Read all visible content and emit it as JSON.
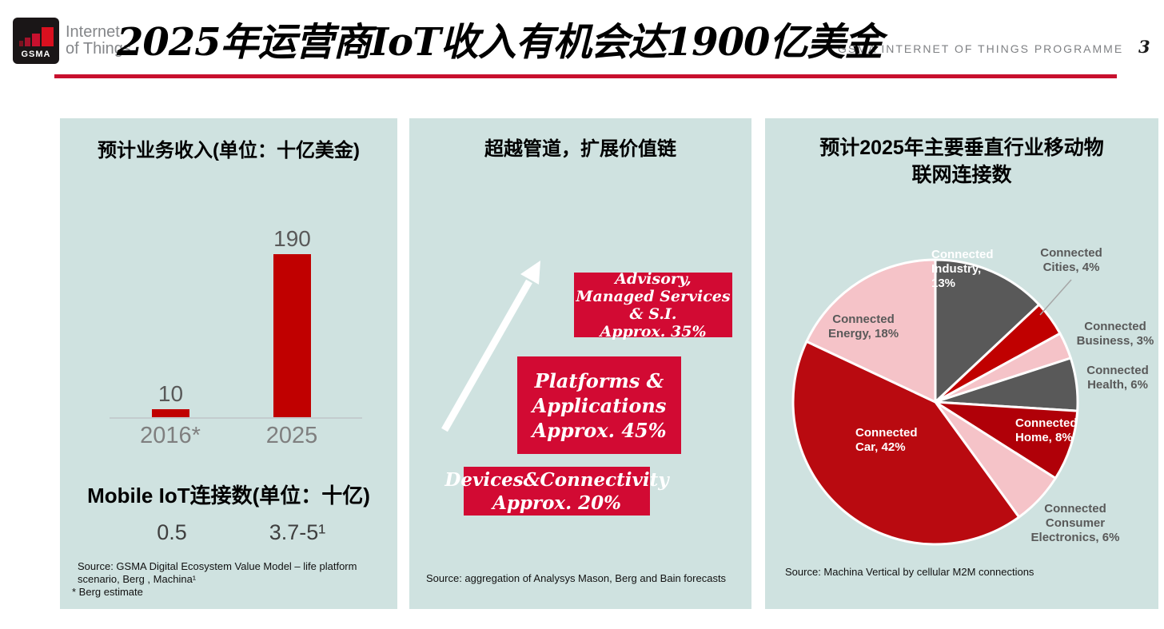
{
  "header": {
    "logo_brand": "GSMA",
    "logo_line1": "Internet",
    "logo_line2": "of Things",
    "title": "2025年运营商IoT收入有机会达1900亿美金",
    "programme_label": "GSMA INTERNET OF THINGS PROGRAMME",
    "page_number": "3"
  },
  "left_panel": {
    "title": "预计业务收入(单位：十亿美金)",
    "subtitle": "Mobile IoT连接数(单位：十亿)",
    "connection_values": [
      "0.5",
      "3.7-5¹"
    ],
    "source_lines": [
      "Source: GSMA Digital Ecosystem Value Model – life platform",
      "scenario, Berg , Machina¹",
      "* Berg estimate"
    ]
  },
  "middle_panel": {
    "title": "超越管道，扩展价值链",
    "boxes": [
      {
        "name": "advisory",
        "lines": [
          "Advisory,",
          "Managed Services",
          "& S.I.",
          "Approx. 35%"
        ]
      },
      {
        "name": "platforms",
        "lines": [
          "Platforms &",
          "Applications",
          "Approx. 45%"
        ]
      },
      {
        "name": "devices",
        "lines": [
          "Devices&Connectivity",
          "Approx. 20%"
        ]
      }
    ],
    "source": "Source: aggregation of Analysys Mason, Berg and Bain forecasts"
  },
  "right_panel": {
    "title_lines": [
      "预计2025年主要垂直行业移动物",
      "联网连接数"
    ],
    "source": "Source: Machina Vertical by cellular M2M connections"
  },
  "chart_data": [
    {
      "type": "bar",
      "title": "预计业务收入(单位：十亿美金)",
      "categories": [
        "2016*",
        "2025"
      ],
      "values": [
        10,
        190
      ],
      "ylim": [
        0,
        190
      ],
      "bar_color": "#c00000",
      "note": "values in billion USD"
    },
    {
      "type": "pie",
      "title": "预计2025年主要垂直行业移动物联网连接数",
      "slices": [
        {
          "label": "Connected Industry",
          "value": 13,
          "color": "#595959",
          "label_lines": [
            "Connected",
            "Industry,",
            "13%"
          ]
        },
        {
          "label": "Connected Cities",
          "value": 4,
          "color": "#c00000",
          "label_lines": [
            "Connected",
            "Cities, 4%"
          ]
        },
        {
          "label": "Connected Business",
          "value": 3,
          "color": "#f5c3c8",
          "label_lines": [
            "Connected",
            "Business, 3%"
          ]
        },
        {
          "label": "Connected Health",
          "value": 6,
          "color": "#595959",
          "label_lines": [
            "Connected",
            "Health, 6%"
          ]
        },
        {
          "label": "Connected Home",
          "value": 8,
          "color": "#b00008",
          "label_lines": [
            "Connected",
            "Home, 8%"
          ]
        },
        {
          "label": "Connected Consumer Electronics",
          "value": 6,
          "color": "#f5c3c8",
          "label_lines": [
            "Connected",
            "Consumer",
            "Electronics, 6%"
          ]
        },
        {
          "label": "Connected Car",
          "value": 42,
          "color": "#b90a10",
          "label_lines": [
            "Connected",
            "Car, 42%"
          ]
        },
        {
          "label": "Connected Energy",
          "value": 18,
          "color": "#f5c3c8",
          "label_lines": [
            "Connected",
            "Energy, 18%"
          ]
        }
      ]
    }
  ],
  "colors": {
    "accent_red": "#c8102e",
    "bar_red": "#c00000",
    "box_red": "#d20a33",
    "panel_bg": "#cfe2e0",
    "dark_gray": "#595959",
    "pink": "#f5c3c8"
  }
}
